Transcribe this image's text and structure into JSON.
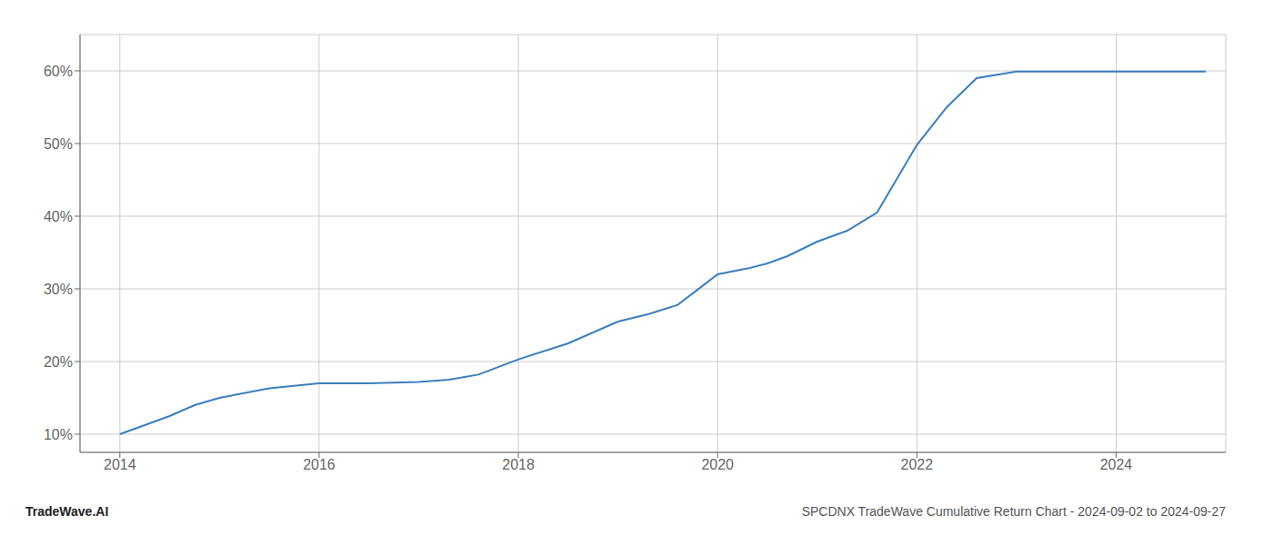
{
  "chart_data": {
    "type": "line",
    "title": "SPCDNX TradeWave Cumulative Return Chart - 2024-09-02 to 2024-09-27",
    "annotations": [
      "TradeWave.AI"
    ],
    "x": [
      2014.0,
      2014.5,
      2014.75,
      2015.0,
      2015.5,
      2016.0,
      2016.5,
      2017.0,
      2017.3,
      2017.6,
      2018.0,
      2018.5,
      2019.0,
      2019.3,
      2019.6,
      2020.0,
      2020.3,
      2020.5,
      2020.7,
      2021.0,
      2021.3,
      2021.6,
      2022.0,
      2022.3,
      2022.6,
      2023.0,
      2023.3,
      2023.6,
      2024.0,
      2024.5,
      2024.9
    ],
    "values": [
      10.0,
      12.5,
      14.0,
      15.0,
      16.3,
      17.0,
      17.0,
      17.2,
      17.5,
      18.2,
      20.3,
      22.5,
      25.5,
      26.5,
      27.8,
      32.0,
      32.8,
      33.5,
      34.5,
      36.5,
      38.0,
      40.5,
      49.8,
      55.0,
      59.0,
      59.9,
      59.9,
      59.9,
      59.9,
      59.9,
      59.9
    ],
    "color": "#3a7ebf",
    "xlim": [
      2013.6,
      2025.1
    ],
    "ylim": [
      7.5,
      65
    ],
    "xticks": [
      2014,
      2016,
      2018,
      2020,
      2022,
      2024
    ],
    "yticks": [
      {
        "value": 10,
        "label": "10%"
      },
      {
        "value": 20,
        "label": "20%"
      },
      {
        "value": 30,
        "label": "30%"
      },
      {
        "value": 40,
        "label": "40%"
      },
      {
        "value": 50,
        "label": "50%"
      },
      {
        "value": 60,
        "label": "60%"
      }
    ],
    "grid": true
  }
}
